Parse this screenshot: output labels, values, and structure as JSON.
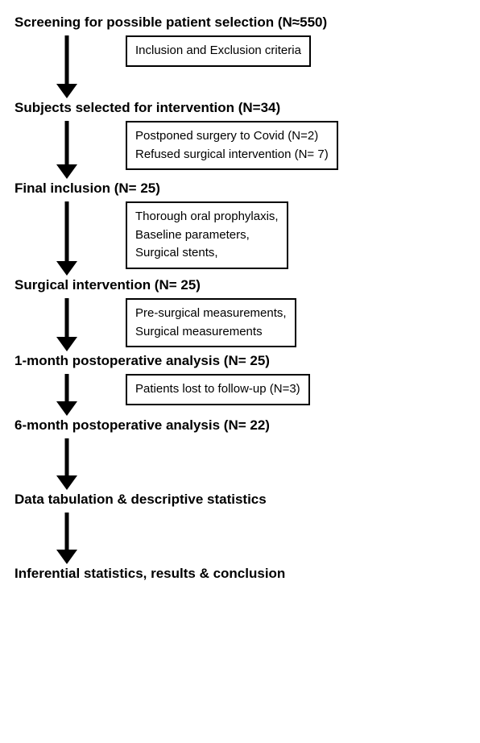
{
  "flow": {
    "type": "flowchart",
    "background_color": "#ffffff",
    "text_color": "#000000",
    "border_color": "#000000",
    "label_fontsize": 17,
    "box_fontsize": 15,
    "arrow_stroke": "#000000",
    "arrow_stroke_width": 5,
    "stages": [
      {
        "label": "Screening for possible patient selection (N≈550)",
        "box_lines": [
          "Inclusion and Exclusion criteria"
        ],
        "arrow_height": 78
      },
      {
        "label": "Subjects selected for intervention (N=34)",
        "box_lines": [
          "Postponed surgery to Covid (N=2)",
          "Refused surgical intervention (N= 7)"
        ],
        "arrow_height": 72
      },
      {
        "label": "Final inclusion (N= 25)",
        "box_lines": [
          "Thorough oral prophylaxis,",
          "Baseline parameters,",
          "Surgical stents,"
        ],
        "arrow_height": 92
      },
      {
        "label": "Surgical intervention (N= 25)",
        "box_lines": [
          "Pre-surgical measurements,",
          "Surgical measurements"
        ],
        "arrow_height": 66
      },
      {
        "label": "1-month postoperative analysis (N= 25)",
        "box_lines": [
          "Patients lost to follow-up (N=3)"
        ],
        "arrow_height": 52
      },
      {
        "label": "6-month postoperative analysis (N= 22)",
        "box_lines": null,
        "arrow_height": 64
      },
      {
        "label": "Data tabulation & descriptive statistics",
        "box_lines": null,
        "arrow_height": 64
      },
      {
        "label": "Inferential statistics, results & conclusion",
        "box_lines": null,
        "arrow_height": 0
      }
    ]
  }
}
